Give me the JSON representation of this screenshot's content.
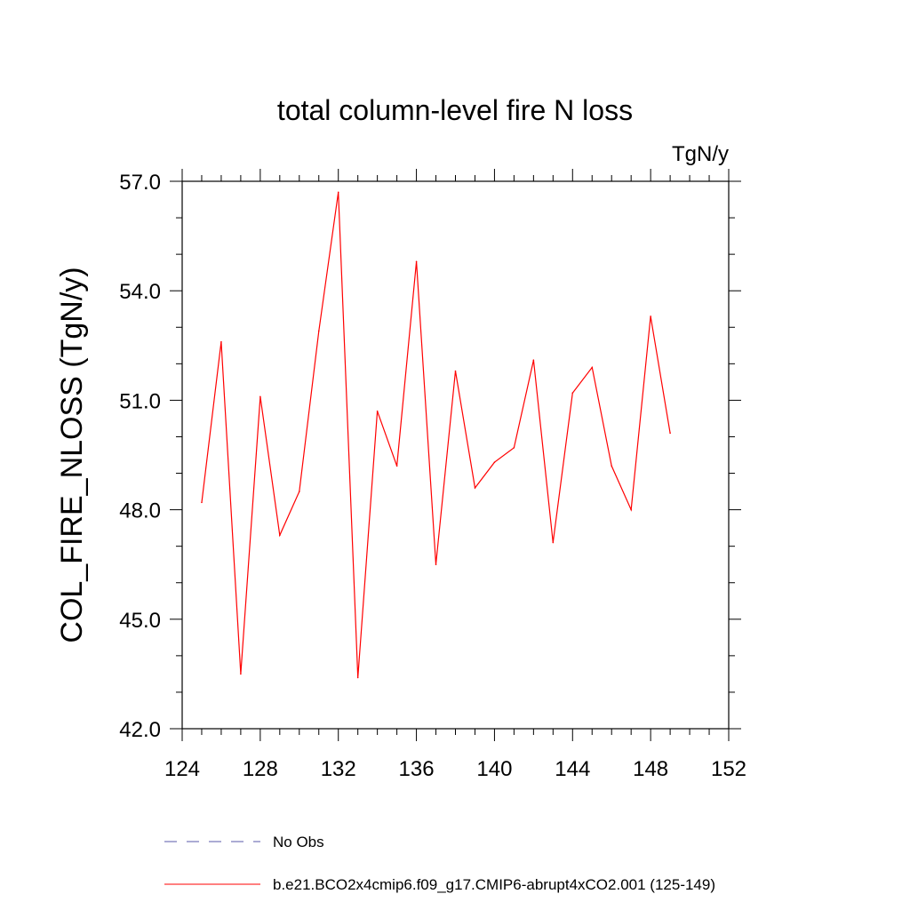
{
  "chart_data": {
    "type": "line",
    "title": "total column-level fire N loss",
    "units": "TgN/y",
    "xlabel": "",
    "ylabel": "COL_FIRE_NLOSS  (TgN/y)",
    "xlim": [
      124,
      152
    ],
    "ylim": [
      42.0,
      57.0
    ],
    "x_ticks": [
      124,
      128,
      132,
      136,
      140,
      144,
      148,
      152
    ],
    "x_tick_labels": [
      "124",
      "128",
      "132",
      "136",
      "140",
      "144",
      "148",
      "152"
    ],
    "y_ticks": [
      42.0,
      45.0,
      48.0,
      51.0,
      54.0,
      57.0
    ],
    "y_tick_labels": [
      "42.0",
      "45.0",
      "48.0",
      "51.0",
      "54.0",
      "57.0"
    ],
    "grid": false,
    "legend_position": "bottom",
    "series": [
      {
        "name": "b.e21.BCO2x4cmip6.f09_g17.CMIP6-abrupt4xCO2.001 (125-149)",
        "color": "#ff0000",
        "dash": "solid",
        "x": [
          125,
          126,
          127,
          128,
          129,
          130,
          131,
          132,
          133,
          134,
          135,
          136,
          137,
          138,
          139,
          140,
          141,
          142,
          143,
          144,
          145,
          146,
          147,
          148,
          149
        ],
        "values": [
          48.2,
          52.6,
          43.5,
          51.1,
          47.3,
          48.5,
          52.9,
          56.7,
          43.4,
          50.7,
          49.2,
          54.8,
          46.5,
          51.8,
          48.6,
          49.3,
          49.7,
          52.1,
          47.1,
          51.2,
          51.9,
          49.2,
          48.0,
          53.3,
          50.1
        ]
      },
      {
        "name": "No Obs",
        "color": "#5a5aa8",
        "dash": "dashed",
        "x": [],
        "values": []
      }
    ]
  }
}
